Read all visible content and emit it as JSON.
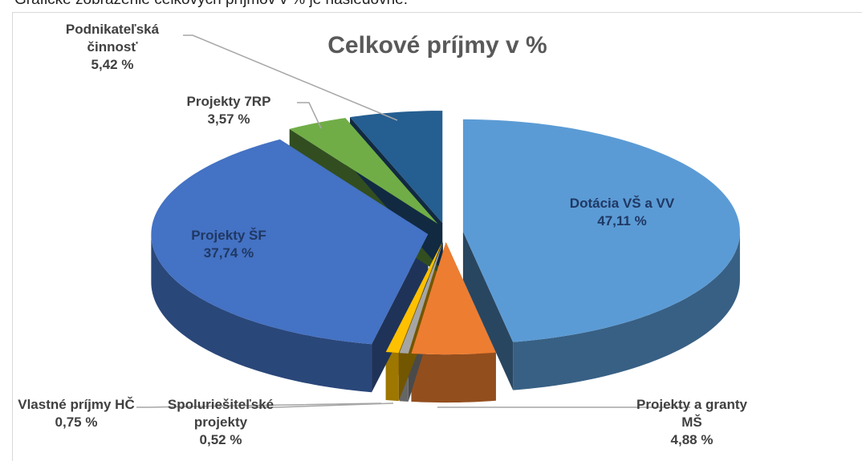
{
  "intro": "Grafické zobrazenie celkových príjmov v % je nasledovné:",
  "chart_data": {
    "type": "pie",
    "title": "Celkové príjmy v %",
    "categories": [
      "Dotácia VŠ a VV",
      "Projekty a granty MŠ",
      "Spoluriešiteľské projekty",
      "Vlastné príjmy HČ",
      "Projekty ŠF",
      "Projekty 7RP",
      "Podnikateľská činnosť"
    ],
    "values": [
      47.11,
      4.88,
      0.52,
      0.75,
      37.74,
      3.57,
      5.42
    ],
    "value_labels": [
      "47,11 %",
      "4,88 %",
      "0,52 %",
      "0,75 %",
      "37,74 %",
      "3,57 %",
      "5,42 %"
    ],
    "colors": [
      "#5b9bd5",
      "#ed7d31",
      "#a5a5a5",
      "#ffc000",
      "#4472c4",
      "#70ad47",
      "#255e91"
    ]
  }
}
